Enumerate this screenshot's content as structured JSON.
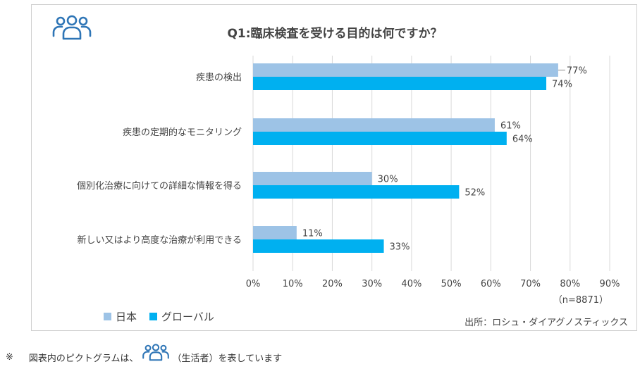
{
  "title": "Q1:臨床検査を受ける目的は何ですか？",
  "colors": {
    "japan": "#9dc3e6",
    "global": "#00b0f0",
    "icon": "#2e75b6",
    "grid": "#d9d9d9"
  },
  "legend": {
    "japan": "日本",
    "global": "グローバル"
  },
  "n_label": "（n=8871）",
  "source": "出所：ロシュ・ダイアグノスティックス",
  "footnote": {
    "mark": "※",
    "before": "図表内のピクトグラムは、",
    "after": "（生活者）を表しています"
  },
  "icons": {
    "header": "people-icon",
    "footnote": "people-icon"
  },
  "chart_data": {
    "type": "bar",
    "orientation": "horizontal",
    "title": "Q1:臨床検査を受ける目的は何ですか？",
    "categories": [
      "疾患の検出",
      "疾患の定期的なモニタリング",
      "個別化治療に向けての詳細な情報を得る",
      "新しい又はより高度な治療が利用できる"
    ],
    "series": [
      {
        "name": "日本",
        "values": [
          77,
          61,
          30,
          11
        ],
        "labels": [
          "77%",
          "61%",
          "30%",
          "11%"
        ]
      },
      {
        "name": "グローバル",
        "values": [
          74,
          64,
          52,
          33
        ],
        "labels": [
          "74%",
          "64%",
          "52%",
          "33%"
        ]
      }
    ],
    "xlim": [
      0,
      90
    ],
    "xticks": [
      0,
      10,
      20,
      30,
      40,
      50,
      60,
      70,
      80,
      90
    ],
    "xtick_labels": [
      "0%",
      "10%",
      "20%",
      "30%",
      "40%",
      "50%",
      "60%",
      "70%",
      "80%",
      "90%"
    ],
    "grid": true,
    "legend_position": "bottom-left"
  }
}
